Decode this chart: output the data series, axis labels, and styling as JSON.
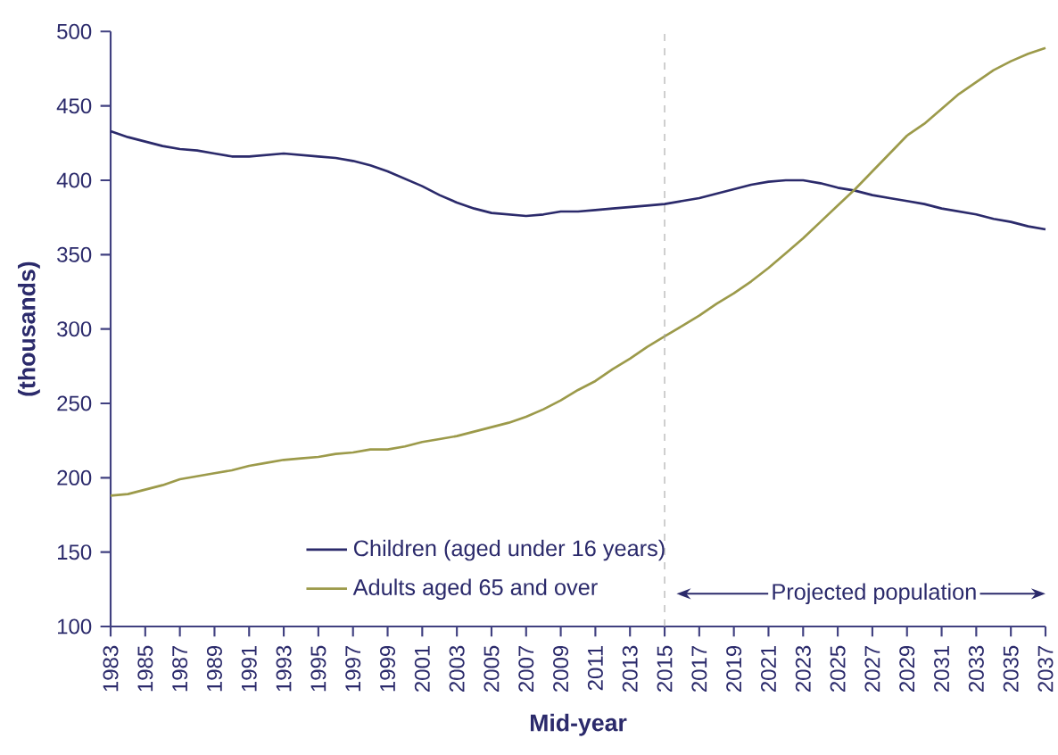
{
  "chart_data": {
    "type": "line",
    "xlabel": "Mid-year",
    "ylabel": "(thousands)",
    "x": [
      1983,
      1984,
      1985,
      1986,
      1987,
      1988,
      1989,
      1990,
      1991,
      1992,
      1993,
      1994,
      1995,
      1996,
      1997,
      1998,
      1999,
      2000,
      2001,
      2002,
      2003,
      2004,
      2005,
      2006,
      2007,
      2008,
      2009,
      2010,
      2011,
      2012,
      2013,
      2014,
      2015,
      2016,
      2017,
      2018,
      2019,
      2020,
      2021,
      2022,
      2023,
      2024,
      2025,
      2026,
      2027,
      2028,
      2029,
      2030,
      2031,
      2032,
      2033,
      2034,
      2035,
      2036,
      2037
    ],
    "series": [
      {
        "name": "Children (aged under 16 years)",
        "color": "#2b2a6b",
        "values": [
          433,
          429,
          426,
          423,
          421,
          420,
          418,
          416,
          416,
          417,
          418,
          417,
          416,
          415,
          413,
          410,
          406,
          401,
          396,
          390,
          385,
          381,
          378,
          377,
          376,
          377,
          379,
          379,
          380,
          381,
          382,
          383,
          384,
          386,
          388,
          391,
          394,
          397,
          399,
          400,
          400,
          398,
          395,
          393,
          390,
          388,
          386,
          384,
          381,
          379,
          377,
          374,
          372,
          369,
          367
        ]
      },
      {
        "name": "Adults aged 65 and over",
        "color": "#9c9a4a",
        "values": [
          188,
          189,
          192,
          195,
          199,
          201,
          203,
          205,
          208,
          210,
          212,
          213,
          214,
          216,
          217,
          219,
          219,
          221,
          224,
          226,
          228,
          231,
          234,
          237,
          241,
          246,
          252,
          259,
          265,
          273,
          280,
          288,
          295,
          302,
          309,
          317,
          324,
          332,
          341,
          351,
          361,
          372,
          383,
          394,
          406,
          418,
          430,
          438,
          448,
          458,
          466,
          474,
          480,
          485,
          489
        ]
      }
    ],
    "xlim": [
      1983,
      2037
    ],
    "xticks": [
      1983,
      1985,
      1987,
      1989,
      1991,
      1993,
      1995,
      1997,
      1999,
      2001,
      2003,
      2005,
      2007,
      2009,
      2011,
      2013,
      2015,
      2017,
      2019,
      2021,
      2023,
      2025,
      2027,
      2029,
      2031,
      2033,
      2035,
      2037
    ],
    "ylim": [
      100,
      500
    ],
    "yticks": [
      100,
      150,
      200,
      250,
      300,
      350,
      400,
      450,
      500
    ],
    "ref_lines": [
      {
        "axis": "x",
        "value": 2015,
        "color": "#a6a6a6",
        "line_style": "dashed"
      }
    ],
    "annotations": [
      "Projected population"
    ],
    "legend": "bottom left",
    "grid": false,
    "marker": "none",
    "line_style": "solid"
  }
}
